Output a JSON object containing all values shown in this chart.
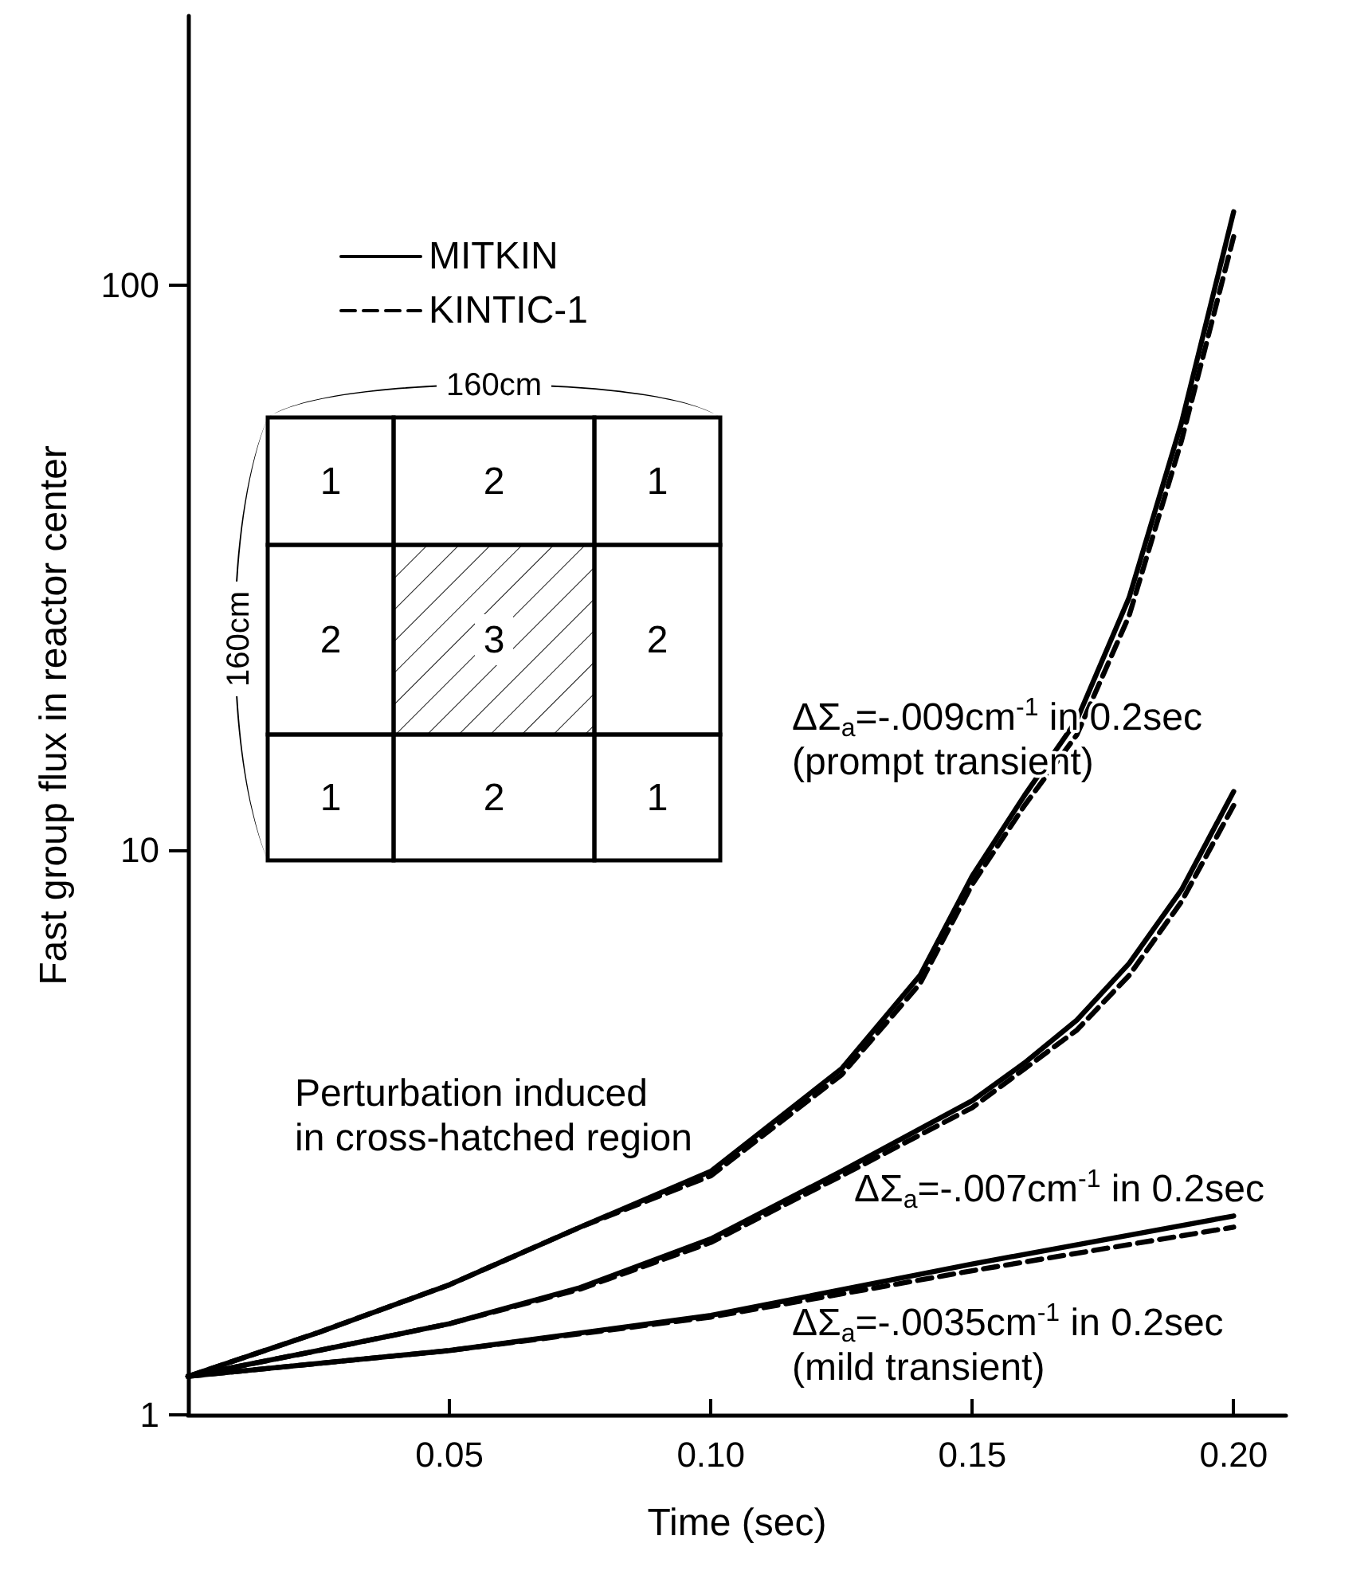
{
  "chart_data": {
    "type": "line",
    "xlabel": "Time (sec)",
    "ylabel": "Fast group flux in reactor center",
    "xlim": [
      0,
      0.21
    ],
    "xticks": [
      0.05,
      {
        "value": 0.1,
        "label": "0.10"
      },
      0.15,
      {
        "value": 0.2,
        "label": "0.20"
      }
    ],
    "ylim": [
      1,
      300
    ],
    "yticks": [
      1,
      10,
      100
    ],
    "log": "y",
    "grid": false,
    "legend": "top left",
    "marker": "none",
    "series": [
      {
        "name": "MITKIN",
        "color": "#000000",
        "line_style": "solid",
        "x": [
          0,
          0.025,
          0.05,
          0.075,
          0.1,
          0.125,
          0.14,
          0.15,
          0.16,
          0.17,
          0.18,
          0.19,
          0.2
        ],
        "values": [
          1.17,
          1.4,
          1.7,
          2.15,
          2.7,
          4.1,
          6,
          9,
          12.5,
          17,
          28,
          57,
          135
        ]
      },
      {
        "name": "KINTIC-1",
        "color": "#000000",
        "line_style": "dashed",
        "x": [
          0,
          0.025,
          0.05,
          0.075,
          0.1,
          0.125,
          0.14,
          0.15,
          0.16,
          0.17,
          0.18,
          0.19,
          0.2
        ],
        "values": [
          1.17,
          1.4,
          1.7,
          2.15,
          2.65,
          4,
          5.8,
          8.7,
          12,
          16,
          26,
          53,
          122
        ]
      },
      {
        "color": "#000000",
        "line_style": "solid",
        "x": [
          0,
          0.025,
          0.05,
          0.075,
          0.1,
          0.125,
          0.15,
          0.16,
          0.17,
          0.18,
          0.19,
          0.2
        ],
        "values": [
          1.17,
          1.3,
          1.45,
          1.68,
          2.05,
          2.7,
          3.6,
          4.2,
          5,
          6.3,
          8.5,
          12.7
        ]
      },
      {
        "color": "#000000",
        "line_style": "dashed",
        "x": [
          0,
          0.025,
          0.05,
          0.075,
          0.1,
          0.125,
          0.15,
          0.16,
          0.17,
          0.18,
          0.19,
          0.2
        ],
        "values": [
          1.17,
          1.3,
          1.45,
          1.67,
          2.02,
          2.65,
          3.5,
          4.1,
          4.8,
          6,
          8.1,
          12
        ]
      },
      {
        "color": "#000000",
        "line_style": "solid",
        "x": [
          0,
          0.05,
          0.1,
          0.15,
          0.2
        ],
        "values": [
          1.17,
          1.3,
          1.5,
          1.85,
          2.25
        ]
      },
      {
        "color": "#000000",
        "line_style": "dashed",
        "x": [
          0,
          0.05,
          0.1,
          0.15,
          0.2
        ],
        "values": [
          1.17,
          1.3,
          1.49,
          1.8,
          2.15
        ]
      }
    ],
    "annotations": [
      "ΔΣ$_{a}$=-.009cm$^{-1}$ in 0.2sec\n(prompt transient)",
      "ΔΣ$_{a}$=-.007cm$^{-1}$ in 0.2sec",
      "ΔΣ$_{a}$=-.0035cm$^{-1}$ in 0.2sec\n(mild transient)",
      "Perturbation induced\nin cross-hatched region",
      "160cm",
      "160cm",
      "1",
      "2",
      "1",
      "2",
      "3",
      "2",
      "1",
      "2",
      "1"
    ]
  }
}
